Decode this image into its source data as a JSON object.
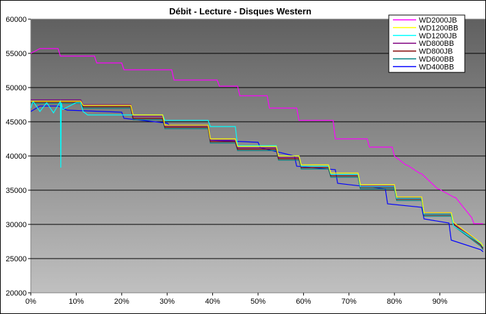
{
  "chart_data": {
    "type": "line",
    "title": "Débit - Lecture - Disques Western",
    "xlabel": "",
    "ylabel": "",
    "xlim": [
      0,
      1
    ],
    "ylim": [
      20000,
      60000
    ],
    "y_ticks": [
      20000,
      25000,
      30000,
      35000,
      40000,
      45000,
      50000,
      55000,
      60000
    ],
    "y_tick_labels": [
      "20000",
      "25000",
      "30000",
      "35000",
      "40000",
      "45000",
      "50000",
      "55000",
      "60000"
    ],
    "x_ticks": [
      0,
      0.1,
      0.2,
      0.3,
      0.4,
      0.5,
      0.6,
      0.7,
      0.8,
      0.9
    ],
    "x_tick_labels": [
      "0%",
      "10%",
      "20%",
      "30%",
      "40%",
      "50%",
      "60%",
      "70%",
      "80%",
      "90%"
    ],
    "grid": "horizontal",
    "legend_position": "top-right",
    "plot_background": [
      "#606060",
      "#c0c0c0"
    ],
    "series": [
      {
        "name": "WD2000JB",
        "color": "#ff00ff",
        "x": [
          0,
          0.02,
          0.06,
          0.065,
          0.14,
          0.145,
          0.2,
          0.205,
          0.31,
          0.315,
          0.41,
          0.415,
          0.455,
          0.46,
          0.52,
          0.525,
          0.585,
          0.59,
          0.665,
          0.67,
          0.74,
          0.745,
          0.795,
          0.8,
          0.825,
          0.83,
          0.855,
          0.86,
          0.895,
          0.9,
          0.93,
          0.935,
          0.97,
          0.975,
          0.995
        ],
        "y": [
          55000,
          55700,
          55700,
          54600,
          54600,
          53600,
          53600,
          52600,
          52600,
          51100,
          51100,
          50200,
          50200,
          48800,
          48800,
          47000,
          47000,
          45200,
          45200,
          42500,
          42500,
          41300,
          41300,
          40000,
          38700,
          38600,
          37500,
          37400,
          35200,
          35100,
          34000,
          33900,
          31000,
          30100,
          30100
        ]
      },
      {
        "name": "WD1200BB",
        "color": "#ffff00",
        "x": [
          0,
          0.11,
          0.115,
          0.22,
          0.225,
          0.29,
          0.295,
          0.39,
          0.395,
          0.45,
          0.455,
          0.54,
          0.545,
          0.59,
          0.595,
          0.655,
          0.66,
          0.72,
          0.725,
          0.8,
          0.805,
          0.86,
          0.865,
          0.925,
          0.93,
          0.99,
          0.995
        ],
        "y": [
          48000,
          48000,
          47400,
          47400,
          46000,
          46000,
          44500,
          44500,
          42500,
          42500,
          41400,
          41400,
          40000,
          40000,
          38700,
          38700,
          37500,
          37500,
          35800,
          35800,
          34000,
          34000,
          31700,
          31700,
          30300,
          27300,
          26800
        ]
      },
      {
        "name": "WD1200JB",
        "color": "#00ffff",
        "x": [
          0,
          0.005,
          0.02,
          0.035,
          0.05,
          0.065,
          0.066,
          0.067,
          0.07,
          0.1,
          0.11,
          0.115,
          0.125,
          0.22,
          0.225,
          0.29,
          0.295,
          0.39,
          0.395,
          0.45,
          0.455,
          0.54,
          0.545,
          0.59,
          0.595,
          0.655,
          0.66,
          0.72,
          0.725,
          0.8,
          0.805,
          0.86,
          0.865,
          0.925,
          0.93,
          0.99,
          0.995
        ],
        "y": [
          47000,
          48000,
          46500,
          47800,
          46300,
          48000,
          38300,
          47800,
          46800,
          47800,
          47800,
          46500,
          46000,
          46000,
          46000,
          46000,
          45200,
          45200,
          44300,
          44300,
          41500,
          41500,
          40000,
          40000,
          38500,
          38500,
          37300,
          37300,
          35500,
          35500,
          33800,
          33800,
          31500,
          31500,
          29800,
          27200,
          26700
        ]
      },
      {
        "name": "WD800BB",
        "color": "#800080",
        "x": [
          0,
          0.11,
          0.115,
          0.22,
          0.225,
          0.29,
          0.295,
          0.39,
          0.395,
          0.45,
          0.455,
          0.54,
          0.545,
          0.59,
          0.595,
          0.655,
          0.66,
          0.72,
          0.725,
          0.8,
          0.805,
          0.86,
          0.865,
          0.925,
          0.93,
          0.99,
          0.995
        ],
        "y": [
          48200,
          48200,
          47500,
          47500,
          45800,
          45800,
          44400,
          44400,
          42300,
          42300,
          41200,
          41200,
          39800,
          39800,
          38500,
          38500,
          37300,
          37300,
          35600,
          35600,
          33900,
          33900,
          31600,
          31600,
          30200,
          27200,
          26700
        ]
      },
      {
        "name": "WD800JB",
        "color": "#800000",
        "x": [
          0,
          0.11,
          0.115,
          0.22,
          0.225,
          0.29,
          0.295,
          0.39,
          0.395,
          0.45,
          0.455,
          0.54,
          0.545,
          0.59,
          0.595,
          0.655,
          0.66,
          0.72,
          0.725,
          0.8,
          0.805,
          0.86,
          0.865,
          0.925,
          0.93,
          0.99,
          0.995
        ],
        "y": [
          47900,
          47900,
          47200,
          47200,
          45500,
          45500,
          44200,
          44200,
          42100,
          42100,
          41000,
          41000,
          39600,
          39600,
          38300,
          38300,
          37100,
          37100,
          35400,
          35400,
          33700,
          33700,
          31400,
          31400,
          30000,
          27000,
          26500
        ]
      },
      {
        "name": "WD600BB",
        "color": "#008080",
        "x": [
          0,
          0.11,
          0.115,
          0.22,
          0.225,
          0.29,
          0.295,
          0.39,
          0.395,
          0.45,
          0.455,
          0.54,
          0.545,
          0.59,
          0.595,
          0.655,
          0.66,
          0.72,
          0.725,
          0.8,
          0.805,
          0.86,
          0.865,
          0.925,
          0.93,
          0.99,
          0.995
        ],
        "y": [
          47700,
          47700,
          47000,
          47000,
          45300,
          45300,
          44000,
          44000,
          41900,
          41900,
          40800,
          40800,
          39400,
          39400,
          38100,
          38100,
          36900,
          36900,
          35200,
          35200,
          33500,
          33500,
          31200,
          31200,
          29800,
          26800,
          26300
        ]
      },
      {
        "name": "WD400BB",
        "color": "#0000ff",
        "x": [
          0,
          0.02,
          0.06,
          0.08,
          0.08,
          0.2,
          0.205,
          0.3,
          0.305,
          0.39,
          0.395,
          0.5,
          0.505,
          0.58,
          0.585,
          0.67,
          0.675,
          0.78,
          0.785,
          0.86,
          0.865,
          0.92,
          0.925,
          0.99,
          0.995
        ],
        "y": [
          46500,
          47300,
          47300,
          46700,
          46700,
          46400,
          45500,
          44800,
          44500,
          44500,
          42300,
          42000,
          41200,
          40000,
          38500,
          38000,
          36000,
          35200,
          33000,
          32500,
          30800,
          30200,
          27700,
          26300,
          26000
        ]
      }
    ]
  }
}
